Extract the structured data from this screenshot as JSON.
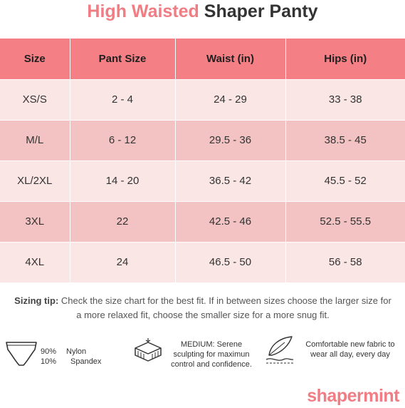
{
  "title": {
    "accent": "High Waisted",
    "rest": "Shaper Panty"
  },
  "table": {
    "headers": [
      "Size",
      "Pant Size",
      "Waist (in)",
      "Hips (in)"
    ],
    "rows": [
      [
        "XS/S",
        "2 - 4",
        "24 - 29",
        "33 - 38"
      ],
      [
        "M/L",
        "6 - 12",
        "29.5 - 36",
        "38.5 - 45"
      ],
      [
        "XL/2XL",
        "14 - 20",
        "36.5 - 42",
        "45.5 - 52"
      ],
      [
        "3XL",
        "22",
        "42.5 - 46",
        "52.5 - 55.5"
      ],
      [
        "4XL",
        "24",
        "46.5 - 50",
        "56 - 58"
      ]
    ]
  },
  "tip": {
    "label": "Sizing tip:",
    "text": "Check the size chart for the best fit. If in between sizes choose the larger size for a more relaxed fit, choose the smaller size for a more snug fit."
  },
  "features": {
    "fabric": {
      "pct1": "90%",
      "mat1": "Nylon",
      "pct2": "10%",
      "mat2": "Spandex"
    },
    "compression": {
      "line1": "MEDIUM: Serene",
      "line2": "sculpting  for maximun",
      "line3": "control and confidence."
    },
    "comfort": {
      "line1": "Comfortable new fabric to",
      "line2": "wear all day, every day"
    }
  },
  "brand": {
    "logo": "shapermint"
  },
  "colors": {
    "accent": "#f07c84",
    "header_bg": "#f47f85",
    "row_light": "#f9e6e5",
    "row_dark": "#f3c3c3"
  }
}
